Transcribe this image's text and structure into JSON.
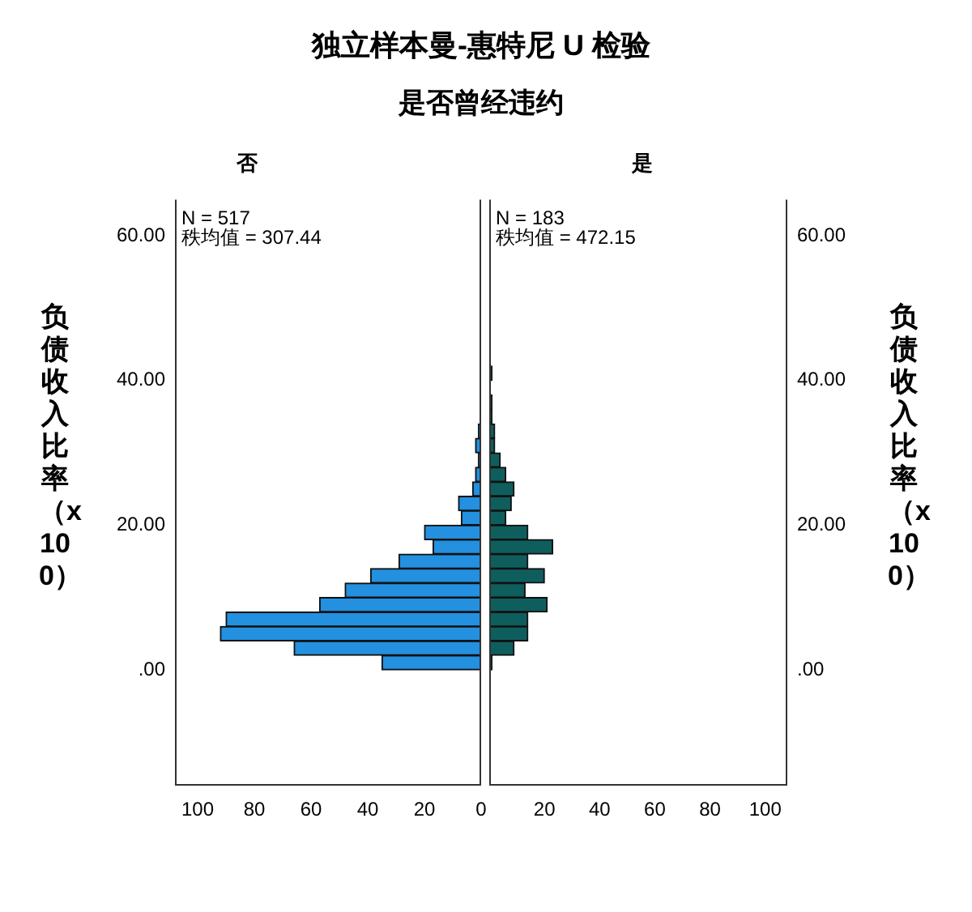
{
  "chart_data": [
    {
      "type": "other",
      "title": "独立样本曼-惠特尼 U 检验",
      "subtitle": "是否曾经违约"
    },
    {
      "type": "histogram",
      "orientation": "horizontal",
      "title": "否",
      "ylabel": "负债收入比率（x100）",
      "bins": [
        0,
        2,
        4,
        6,
        8,
        10,
        12,
        14,
        16,
        18,
        20,
        22,
        24,
        26,
        28,
        30,
        32,
        34,
        36,
        38,
        40,
        42
      ],
      "values": [
        35,
        66,
        92,
        90,
        57,
        48,
        39,
        29,
        17,
        20,
        7,
        8,
        3,
        2,
        1,
        2,
        1,
        0,
        0,
        0,
        0
      ],
      "color": "#2390e0",
      "xlim": [
        108,
        0
      ],
      "xticks": [
        100,
        80,
        60,
        40,
        20,
        0
      ],
      "ylim": [
        -16,
        65
      ],
      "yticks": [
        {
          "value": 0,
          "label": ".00"
        },
        {
          "value": 20,
          "label": "20.00"
        },
        {
          "value": 40,
          "label": "40.00"
        },
        {
          "value": 60,
          "label": "60.00"
        }
      ],
      "annotations": [
        "N = 517",
        "秩均值 = 307.44"
      ]
    },
    {
      "type": "histogram",
      "orientation": "horizontal",
      "title": "是",
      "ylabel": "负债收入比率（x100）",
      "bins": [
        0,
        2,
        4,
        6,
        8,
        10,
        12,
        14,
        16,
        18,
        20,
        22,
        24,
        26,
        28,
        30,
        32,
        34,
        36,
        38,
        40,
        42
      ],
      "values": [
        1,
        9,
        14,
        14,
        21,
        13,
        20,
        14,
        23,
        14,
        6,
        8,
        9,
        6,
        4,
        2,
        2,
        1,
        1,
        0,
        1
      ],
      "color": "#0f5e5e",
      "xlim": [
        0,
        108
      ],
      "xticks": [
        20,
        40,
        60,
        80,
        100
      ],
      "ylim": [
        -16,
        65
      ],
      "yticks": [
        {
          "value": 0,
          "label": ".00"
        },
        {
          "value": 20,
          "label": "20.00"
        },
        {
          "value": 40,
          "label": "40.00"
        },
        {
          "value": 60,
          "label": "60.00"
        }
      ],
      "annotations": [
        "N = 183",
        "秩均值 = 472.15"
      ]
    }
  ]
}
